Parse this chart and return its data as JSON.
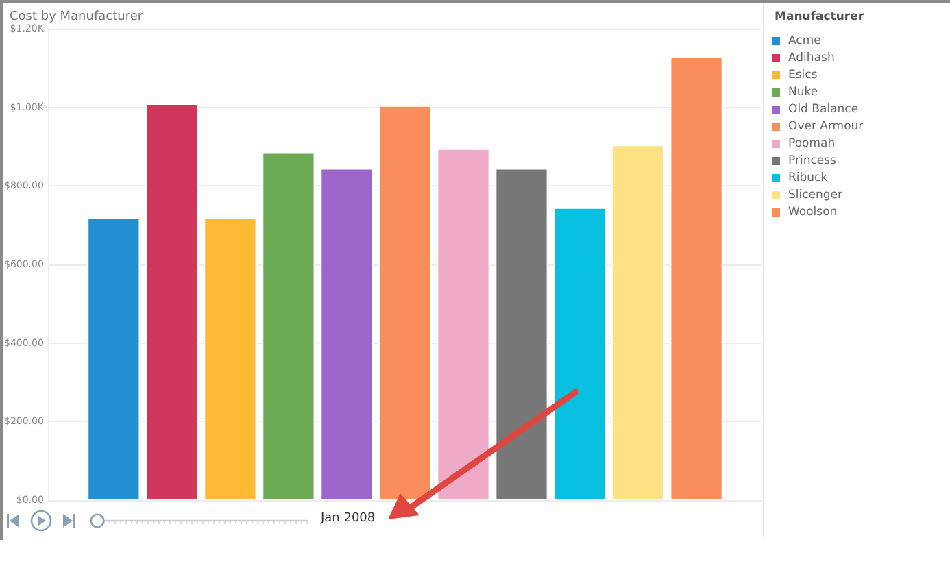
{
  "chart_data": {
    "type": "bar",
    "title": "Cost by Manufacturer",
    "legend_title": "Manufacturer",
    "categories": [
      null
    ],
    "series": [
      {
        "name": "Acme",
        "color": "#2490d4",
        "values": [
          720
        ]
      },
      {
        "name": "Adihash",
        "color": "#d0365a",
        "values": [
          1010
        ]
      },
      {
        "name": "Esics",
        "color": "#fdb933",
        "values": [
          720
        ]
      },
      {
        "name": "Nuke",
        "color": "#6aaa55",
        "values": [
          885
        ]
      },
      {
        "name": "Old Balance",
        "color": "#9b65c9",
        "values": [
          845
        ]
      },
      {
        "name": "Over Armour",
        "color": "#f98d5c",
        "values": [
          1005
        ]
      },
      {
        "name": "Poomah",
        "color": "#eeaac7",
        "values": [
          895
        ]
      },
      {
        "name": "Princess",
        "color": "#777777",
        "values": [
          845
        ]
      },
      {
        "name": "Ribuck",
        "color": "#07c0e0",
        "values": [
          745
        ]
      },
      {
        "name": "Slicenger",
        "color": "#fde182",
        "values": [
          905
        ]
      },
      {
        "name": "Woolson",
        "color": "#f98d5c",
        "values": [
          1130
        ]
      }
    ],
    "ylim": [
      0,
      1200
    ],
    "yticks": [
      {
        "value": 0,
        "label": "$0.00"
      },
      {
        "value": 200,
        "label": "$200.00"
      },
      {
        "value": 400,
        "label": "$400.00"
      },
      {
        "value": 600,
        "label": "$600.00"
      },
      {
        "value": 800,
        "label": "$800.00"
      },
      {
        "value": 1000,
        "label": "$1.00K"
      },
      {
        "value": 1200,
        "label": "$1.20K"
      }
    ],
    "grid": "y",
    "legend": "right",
    "annotations": [
      "Jan 2008"
    ]
  }
}
